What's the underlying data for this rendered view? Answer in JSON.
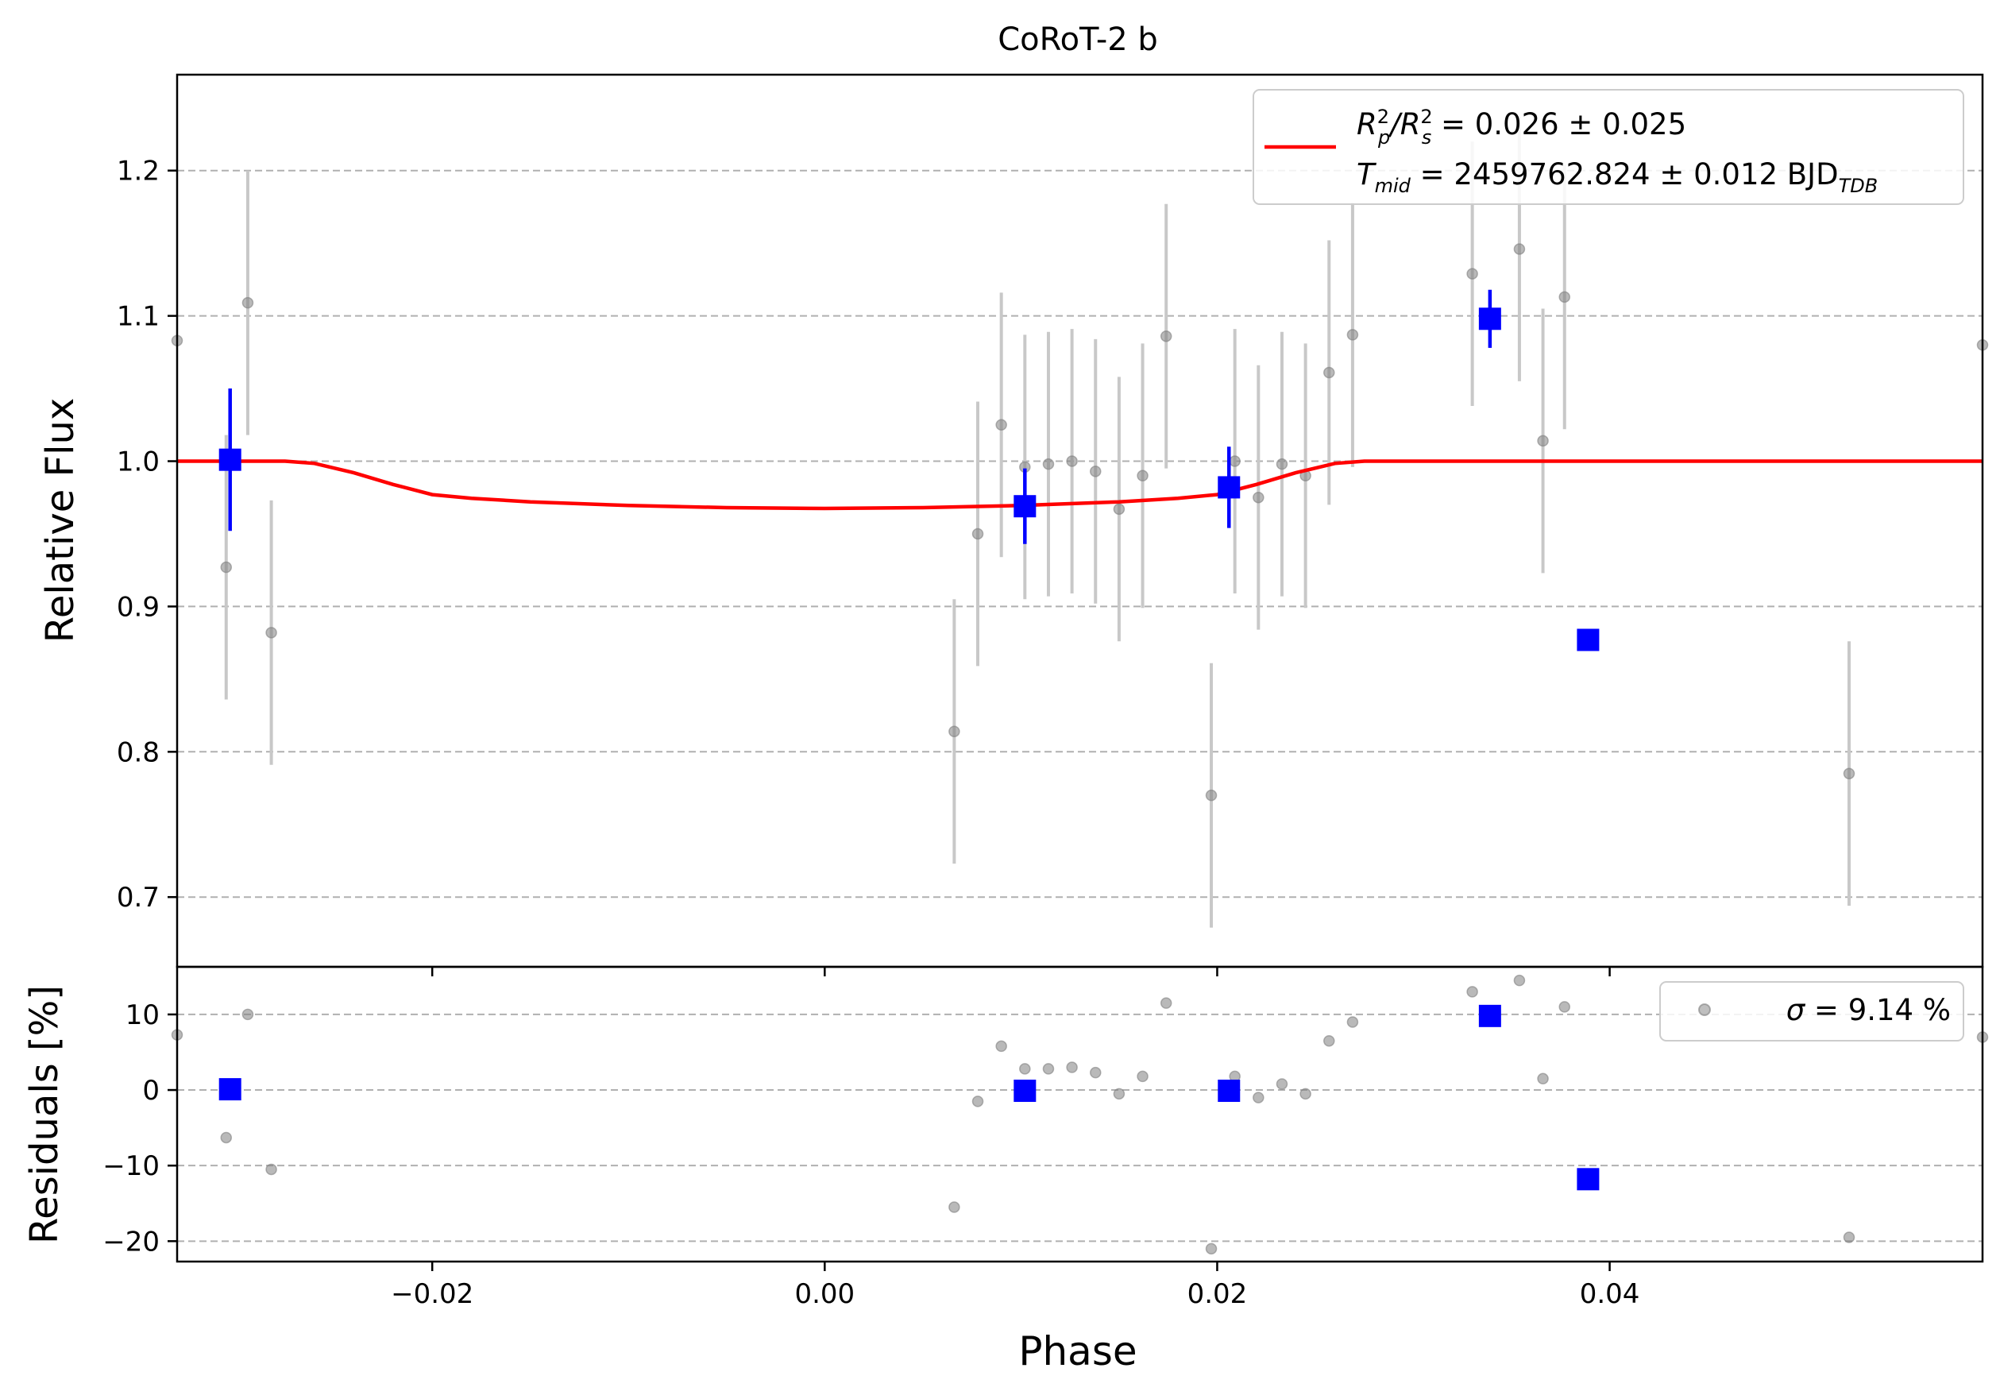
{
  "chart_data": {
    "type": "scatter",
    "title": "CoRoT-2 b",
    "xlabel": "Phase",
    "xlim": [
      -0.033,
      0.059
    ],
    "xticks": [
      -0.02,
      0.0,
      0.02,
      0.04
    ],
    "xtick_labels": [
      "−0.02",
      "0.00",
      "0.02",
      "0.04"
    ],
    "grid": "horizontal dashed",
    "colors": {
      "model": "#ff0000",
      "binned": "#0000ff",
      "raw_point": "#808080",
      "raw_err": "#c8c8c8",
      "grid": "#b0b0b0"
    },
    "top_panel": {
      "ylabel": "Relative Flux",
      "ylim": [
        0.652,
        1.266
      ],
      "yticks": [
        0.7,
        0.8,
        0.9,
        1.0,
        1.1,
        1.2
      ],
      "ytick_labels": [
        "0.7",
        "0.8",
        "0.9",
        "1.0",
        "1.1",
        "1.2"
      ],
      "legend": {
        "placement": "upper right",
        "line1_a": "R",
        "line1_a_sup": "2",
        "line1_a_sub": "p",
        "line1_b": "/R",
        "line1_b_sup": "2",
        "line1_b_sub": "s",
        "line1_val": " = 0.026 ± 0.025",
        "line2_a": "T",
        "line2_a_sub": "mid",
        "line2_val": " = 2459762.824 ± 0.012 BJD",
        "line2_sub": "TDB"
      },
      "model": {
        "x": [
          -0.033,
          -0.0275,
          -0.026,
          -0.024,
          -0.022,
          -0.02,
          -0.018,
          -0.015,
          -0.01,
          -0.005,
          0.0,
          0.005,
          0.01,
          0.015,
          0.018,
          0.02,
          0.022,
          0.024,
          0.026,
          0.0275,
          0.059
        ],
        "y": [
          1.0,
          1.0,
          0.9985,
          0.992,
          0.984,
          0.977,
          0.9745,
          0.972,
          0.9695,
          0.968,
          0.9675,
          0.968,
          0.9695,
          0.972,
          0.9745,
          0.977,
          0.984,
          0.992,
          0.9985,
          1.0,
          1.0
        ]
      },
      "raw": [
        {
          "x": -0.033,
          "y": 1.083,
          "err": 0.0
        },
        {
          "x": -0.0305,
          "y": 0.927,
          "err": 0.091
        },
        {
          "x": -0.0294,
          "y": 1.109,
          "err": 0.091
        },
        {
          "x": -0.0282,
          "y": 0.882,
          "err": 0.091
        },
        {
          "x": 0.0066,
          "y": 0.814,
          "err": 0.091
        },
        {
          "x": 0.0078,
          "y": 0.95,
          "err": 0.091
        },
        {
          "x": 0.009,
          "y": 1.025,
          "err": 0.091
        },
        {
          "x": 0.0102,
          "y": 0.996,
          "err": 0.091
        },
        {
          "x": 0.0114,
          "y": 0.998,
          "err": 0.091
        },
        {
          "x": 0.0126,
          "y": 1.0,
          "err": 0.091
        },
        {
          "x": 0.0138,
          "y": 0.993,
          "err": 0.091
        },
        {
          "x": 0.015,
          "y": 0.967,
          "err": 0.091
        },
        {
          "x": 0.0162,
          "y": 0.99,
          "err": 0.091
        },
        {
          "x": 0.0174,
          "y": 1.086,
          "err": 0.091
        },
        {
          "x": 0.0197,
          "y": 0.77,
          "err": 0.091
        },
        {
          "x": 0.0209,
          "y": 1.0,
          "err": 0.091
        },
        {
          "x": 0.0221,
          "y": 0.975,
          "err": 0.091
        },
        {
          "x": 0.0233,
          "y": 0.998,
          "err": 0.091
        },
        {
          "x": 0.0245,
          "y": 0.99,
          "err": 0.091
        },
        {
          "x": 0.0257,
          "y": 1.061,
          "err": 0.091
        },
        {
          "x": 0.0269,
          "y": 1.087,
          "err": 0.091
        },
        {
          "x": 0.033,
          "y": 1.129,
          "err": 0.091
        },
        {
          "x": 0.0354,
          "y": 1.146,
          "err": 0.091
        },
        {
          "x": 0.0366,
          "y": 1.014,
          "err": 0.091
        },
        {
          "x": 0.0377,
          "y": 1.113,
          "err": 0.091
        },
        {
          "x": 0.0522,
          "y": 0.785,
          "err": 0.091
        },
        {
          "x": 0.059,
          "y": 1.08,
          "err": 0.0
        }
      ],
      "binned": [
        {
          "x": -0.0303,
          "y": 1.001,
          "err": 0.049
        },
        {
          "x": 0.0102,
          "y": 0.969,
          "err": 0.026
        },
        {
          "x": 0.0206,
          "y": 0.982,
          "err": 0.028
        },
        {
          "x": 0.0339,
          "y": 1.098,
          "err": 0.02
        },
        {
          "x": 0.0389,
          "y": 0.877,
          "err": 0.0
        }
      ]
    },
    "bottom_panel": {
      "ylabel": "Residuals [%]",
      "ylim": [
        -22.7,
        16.3
      ],
      "yticks": [
        -20,
        -10,
        0,
        10
      ],
      "ytick_labels": [
        "−20",
        "−10",
        "0",
        "10"
      ],
      "legend": {
        "placement": "upper right",
        "sigma_symbol": "σ",
        "sigma_text": " = 9.14 %"
      },
      "raw": [
        {
          "x": -0.033,
          "y": 7.3
        },
        {
          "x": -0.0305,
          "y": -6.3
        },
        {
          "x": -0.0294,
          "y": 10.0
        },
        {
          "x": -0.0282,
          "y": -10.5
        },
        {
          "x": 0.0066,
          "y": -15.5
        },
        {
          "x": 0.0078,
          "y": -1.5
        },
        {
          "x": 0.009,
          "y": 5.8
        },
        {
          "x": 0.0102,
          "y": 2.8
        },
        {
          "x": 0.0114,
          "y": 2.8
        },
        {
          "x": 0.0126,
          "y": 3.0
        },
        {
          "x": 0.0138,
          "y": 2.3
        },
        {
          "x": 0.015,
          "y": -0.5
        },
        {
          "x": 0.0162,
          "y": 1.8
        },
        {
          "x": 0.0174,
          "y": 11.5
        },
        {
          "x": 0.0197,
          "y": -21.0
        },
        {
          "x": 0.0209,
          "y": 1.8
        },
        {
          "x": 0.0221,
          "y": -1.0
        },
        {
          "x": 0.0233,
          "y": 0.8
        },
        {
          "x": 0.0245,
          "y": -0.5
        },
        {
          "x": 0.0257,
          "y": 6.5
        },
        {
          "x": 0.0269,
          "y": 9.0
        },
        {
          "x": 0.033,
          "y": 13.0
        },
        {
          "x": 0.0354,
          "y": 14.5
        },
        {
          "x": 0.0366,
          "y": 1.5
        },
        {
          "x": 0.0377,
          "y": 11.0
        },
        {
          "x": 0.0522,
          "y": -19.5
        },
        {
          "x": 0.059,
          "y": 7.0
        }
      ],
      "binned": [
        {
          "x": -0.0303,
          "y": 0.1
        },
        {
          "x": 0.0102,
          "y": -0.1
        },
        {
          "x": 0.0206,
          "y": -0.1
        },
        {
          "x": 0.0339,
          "y": 9.8
        },
        {
          "x": 0.0389,
          "y": -11.8
        }
      ]
    }
  }
}
